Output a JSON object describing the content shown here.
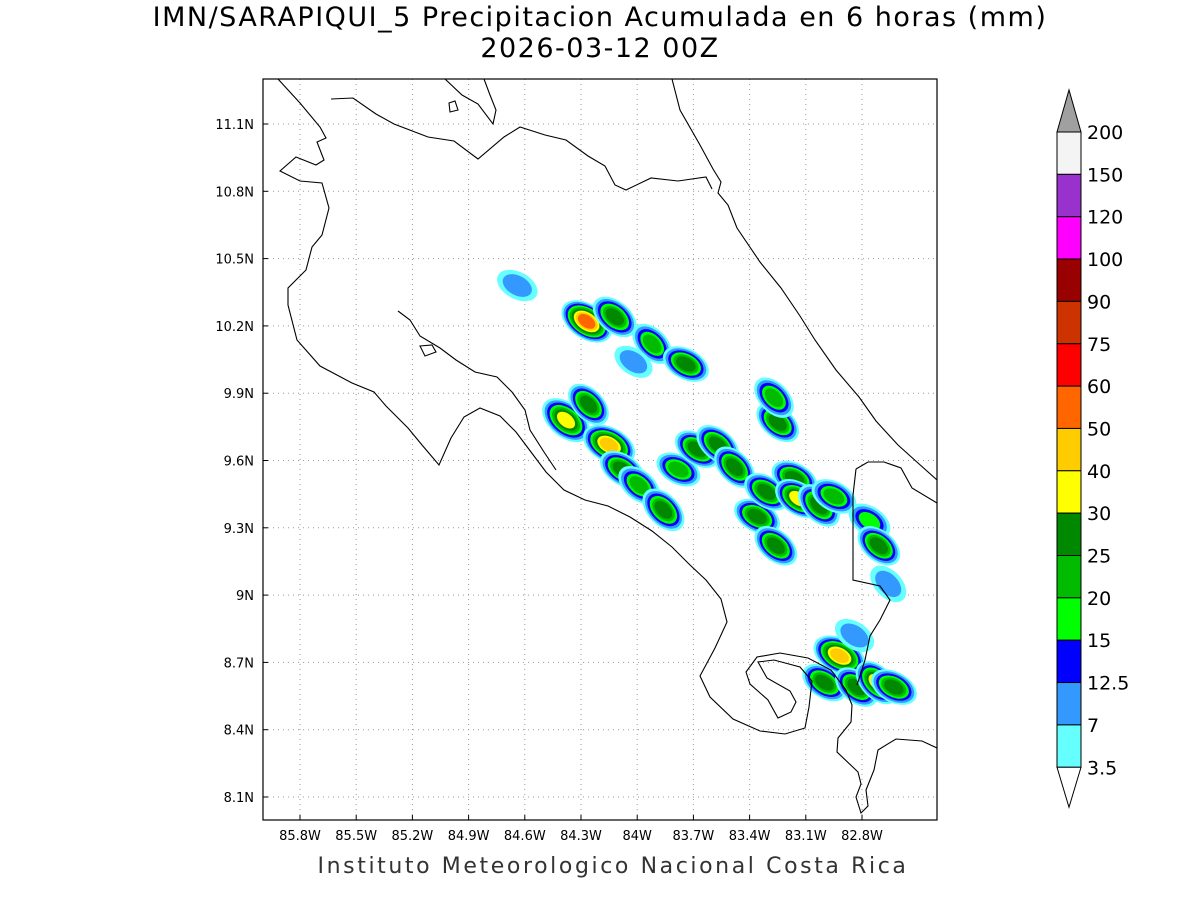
{
  "title": {
    "line1": "IMN/SARAPIQUI_5 Precipitacion Acumulada en 6 horas (mm)",
    "line2": "2026-03-12 00Z"
  },
  "credit": "Instituto Meteorologico Nacional Costa Rica",
  "map": {
    "lon_range": [
      -86.0,
      -83.0
    ],
    "lat_range": [
      8.0,
      11.3
    ],
    "grid": "dotted",
    "lon_ticks": [
      {
        "value": -85.8,
        "label": "85.8W"
      },
      {
        "value": -85.5,
        "label": "85.5W"
      },
      {
        "value": -85.2,
        "label": "85.2W"
      },
      {
        "value": -84.9,
        "label": "84.9W"
      },
      {
        "value": -84.6,
        "label": "84.6W"
      },
      {
        "value": -84.3,
        "label": "84.3W"
      },
      {
        "value": -84.0,
        "label": "84W"
      },
      {
        "value": -83.7,
        "label": "83.7W"
      },
      {
        "value": -83.4,
        "label": "83.4W"
      },
      {
        "value": -83.1,
        "label": "83.1W"
      },
      {
        "value": -82.8,
        "label": "82.8W"
      }
    ],
    "lat_ticks": [
      {
        "value": 11.1,
        "label": "11.1N"
      },
      {
        "value": 10.8,
        "label": "10.8N"
      },
      {
        "value": 10.5,
        "label": "10.5N"
      },
      {
        "value": 10.2,
        "label": "10.2N"
      },
      {
        "value": 9.9,
        "label": "9.9N"
      },
      {
        "value": 9.6,
        "label": "9.6N"
      },
      {
        "value": 9.3,
        "label": "9.3N"
      },
      {
        "value": 9.0,
        "label": "9N"
      },
      {
        "value": 8.7,
        "label": "8.7N"
      },
      {
        "value": 8.4,
        "label": "8.4N"
      },
      {
        "value": 8.1,
        "label": "8.1N"
      }
    ],
    "rain_cells": [
      {
        "lon": -84.64,
        "lat": 10.38,
        "mm": 12
      },
      {
        "lon": -84.27,
        "lat": 10.22,
        "mm": 55
      },
      {
        "lon": -84.12,
        "lat": 10.24,
        "mm": 28
      },
      {
        "lon": -83.92,
        "lat": 10.12,
        "mm": 22
      },
      {
        "lon": -83.74,
        "lat": 10.03,
        "mm": 25
      },
      {
        "lon": -84.02,
        "lat": 10.04,
        "mm": 9
      },
      {
        "lon": -84.38,
        "lat": 9.78,
        "mm": 38
      },
      {
        "lon": -84.26,
        "lat": 9.85,
        "mm": 25
      },
      {
        "lon": -84.15,
        "lat": 9.67,
        "mm": 40
      },
      {
        "lon": -84.08,
        "lat": 9.56,
        "mm": 25
      },
      {
        "lon": -83.99,
        "lat": 9.49,
        "mm": 22
      },
      {
        "lon": -83.86,
        "lat": 9.38,
        "mm": 28
      },
      {
        "lon": -83.78,
        "lat": 9.56,
        "mm": 20
      },
      {
        "lon": -83.68,
        "lat": 9.65,
        "mm": 25
      },
      {
        "lon": -83.57,
        "lat": 9.67,
        "mm": 25
      },
      {
        "lon": -83.48,
        "lat": 9.57,
        "mm": 25
      },
      {
        "lon": -83.36,
        "lat": 9.35,
        "mm": 25
      },
      {
        "lon": -83.31,
        "lat": 9.46,
        "mm": 25
      },
      {
        "lon": -83.25,
        "lat": 9.77,
        "mm": 25
      },
      {
        "lon": -83.27,
        "lat": 9.88,
        "mm": 22
      },
      {
        "lon": -83.16,
        "lat": 9.52,
        "mm": 25
      },
      {
        "lon": -83.14,
        "lat": 9.43,
        "mm": 30
      },
      {
        "lon": -83.26,
        "lat": 9.22,
        "mm": 25
      },
      {
        "lon": -83.03,
        "lat": 9.4,
        "mm": 28
      },
      {
        "lon": -82.95,
        "lat": 9.44,
        "mm": 22
      },
      {
        "lon": -82.76,
        "lat": 9.33,
        "mm": 18
      },
      {
        "lon": -82.71,
        "lat": 9.22,
        "mm": 25
      },
      {
        "lon": -82.66,
        "lat": 9.05,
        "mm": 12
      },
      {
        "lon": -82.92,
        "lat": 8.73,
        "mm": 45
      },
      {
        "lon": -83.0,
        "lat": 8.61,
        "mm": 25
      },
      {
        "lon": -82.83,
        "lat": 8.59,
        "mm": 25
      },
      {
        "lon": -82.72,
        "lat": 8.61,
        "mm": 30
      },
      {
        "lon": -82.63,
        "lat": 8.59,
        "mm": 25
      },
      {
        "lon": -82.84,
        "lat": 8.82,
        "mm": 12
      }
    ]
  },
  "legend": {
    "labels": [
      "200",
      "150",
      "120",
      "100",
      "90",
      "75",
      "60",
      "50",
      "40",
      "30",
      "25",
      "20",
      "15",
      "12.5",
      "7",
      "3.5"
    ],
    "colors": [
      "#a0a0a0",
      "#f4f4f4",
      "#9932cc",
      "#ff00ff",
      "#990000",
      "#cc3300",
      "#ff0000",
      "#ff6600",
      "#ffcc00",
      "#ffff00",
      "#008800",
      "#00bb00",
      "#00ff00",
      "#0000ff",
      "#3399ff",
      "#66ffff"
    ]
  },
  "colors": {
    "frame": "#000000",
    "grid": "#999999",
    "coast": "#000000"
  }
}
